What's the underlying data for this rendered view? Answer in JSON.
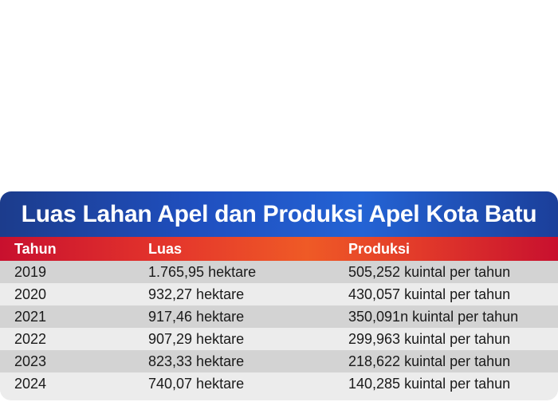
{
  "chart_data": {
    "type": "table",
    "title": "Luas Lahan Apel dan Produksi Apel Kota Batu",
    "columns": [
      "Tahun",
      "Luas",
      "Produksi"
    ],
    "rows": [
      [
        "2019",
        "1.765,95 hektare",
        "505,252 kuintal per tahun"
      ],
      [
        "2020",
        "932,27 hektare",
        "430,057 kuintal per tahun"
      ],
      [
        "2021",
        "917,46 hektare",
        "350,091n kuintal per tahun"
      ],
      [
        "2022",
        "907,29 hektare",
        "299,963 kuintal per tahun"
      ],
      [
        "2023",
        "823,33 hektare",
        "218,622 kuintal per tahun"
      ],
      [
        "2024",
        "740,07 hektare",
        "140,285 kuintal per tahun"
      ]
    ]
  },
  "colors": {
    "title_bar": "#1f4fbf",
    "header_row": "#e4352c",
    "row_alt_dark": "#d3d3d3",
    "row_alt_light": "#ececec"
  }
}
